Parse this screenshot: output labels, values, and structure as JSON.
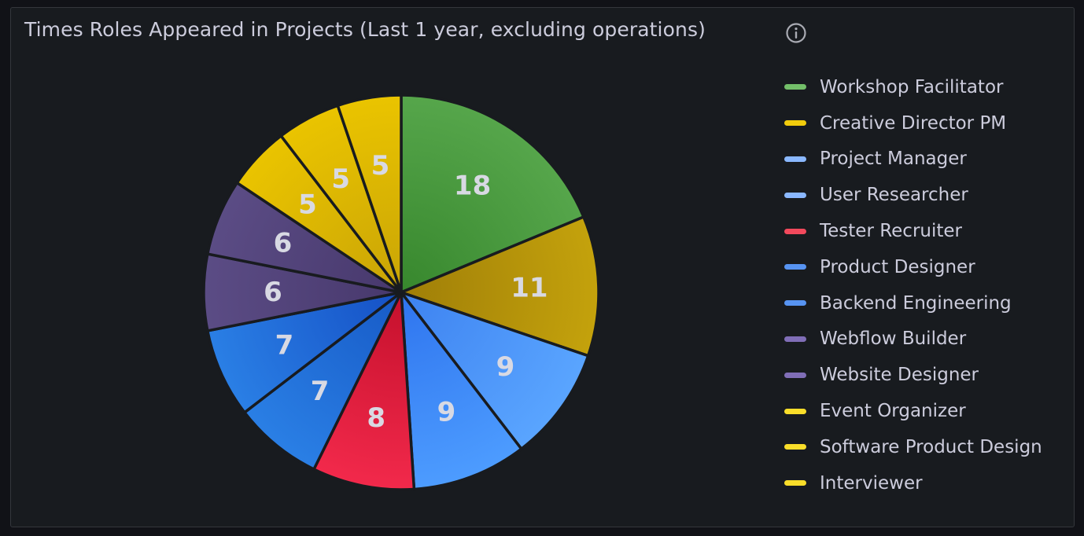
{
  "panel": {
    "title": "Times Roles Appeared in Projects (Last 1 year, excluding operations)",
    "info_icon": "info-circle-icon"
  },
  "chart_data": {
    "type": "pie",
    "title": "Times Roles Appeared in Projects (Last 1 year, excluding operations)",
    "legend_position": "right",
    "slices": [
      {
        "label": "Workshop Facilitator",
        "value": 18,
        "color": "#56a64b",
        "dark": "#37872d"
      },
      {
        "label": "Creative Director PM",
        "value": 11,
        "color": "#c4a20c",
        "dark": "#9f7e08"
      },
      {
        "label": "Project Manager",
        "value": 9,
        "color": "#5aa5ff",
        "dark": "#3d82f0"
      },
      {
        "label": "User Researcher",
        "value": 9,
        "color": "#4d9cff",
        "dark": "#2e74ee"
      },
      {
        "label": "Tester Recruiter",
        "value": 8,
        "color": "#f2294b",
        "dark": "#c4102c"
      },
      {
        "label": "Product Designer",
        "value": 7,
        "color": "#2a7fe5",
        "dark": "#175ac6"
      },
      {
        "label": "Backend Engineering",
        "value": 7,
        "color": "#2a7fe5",
        "dark": "#1550c5"
      },
      {
        "label": "Webflow Builder",
        "value": 6,
        "color": "#5b4c85",
        "dark": "#47386c"
      },
      {
        "label": "Website Designer",
        "value": 6,
        "color": "#5b4c85",
        "dark": "#47386c"
      },
      {
        "label": "Event Organizer",
        "value": 5,
        "color": "#eac400",
        "dark": "#c9a406"
      },
      {
        "label": "Software Product Design",
        "value": 5,
        "color": "#eac400",
        "dark": "#c9a406"
      },
      {
        "label": "Interviewer",
        "value": 5,
        "color": "#eac400",
        "dark": "#c9a406"
      }
    ]
  },
  "legend": {
    "swatch_colors": [
      "#73bf69",
      "#f2cc0c",
      "#8ab8ff",
      "#8ab8ff",
      "#f2495c",
      "#5794f2",
      "#5794f2",
      "#806eb7",
      "#806eb7",
      "#fade2a",
      "#fade2a",
      "#fade2a"
    ]
  }
}
